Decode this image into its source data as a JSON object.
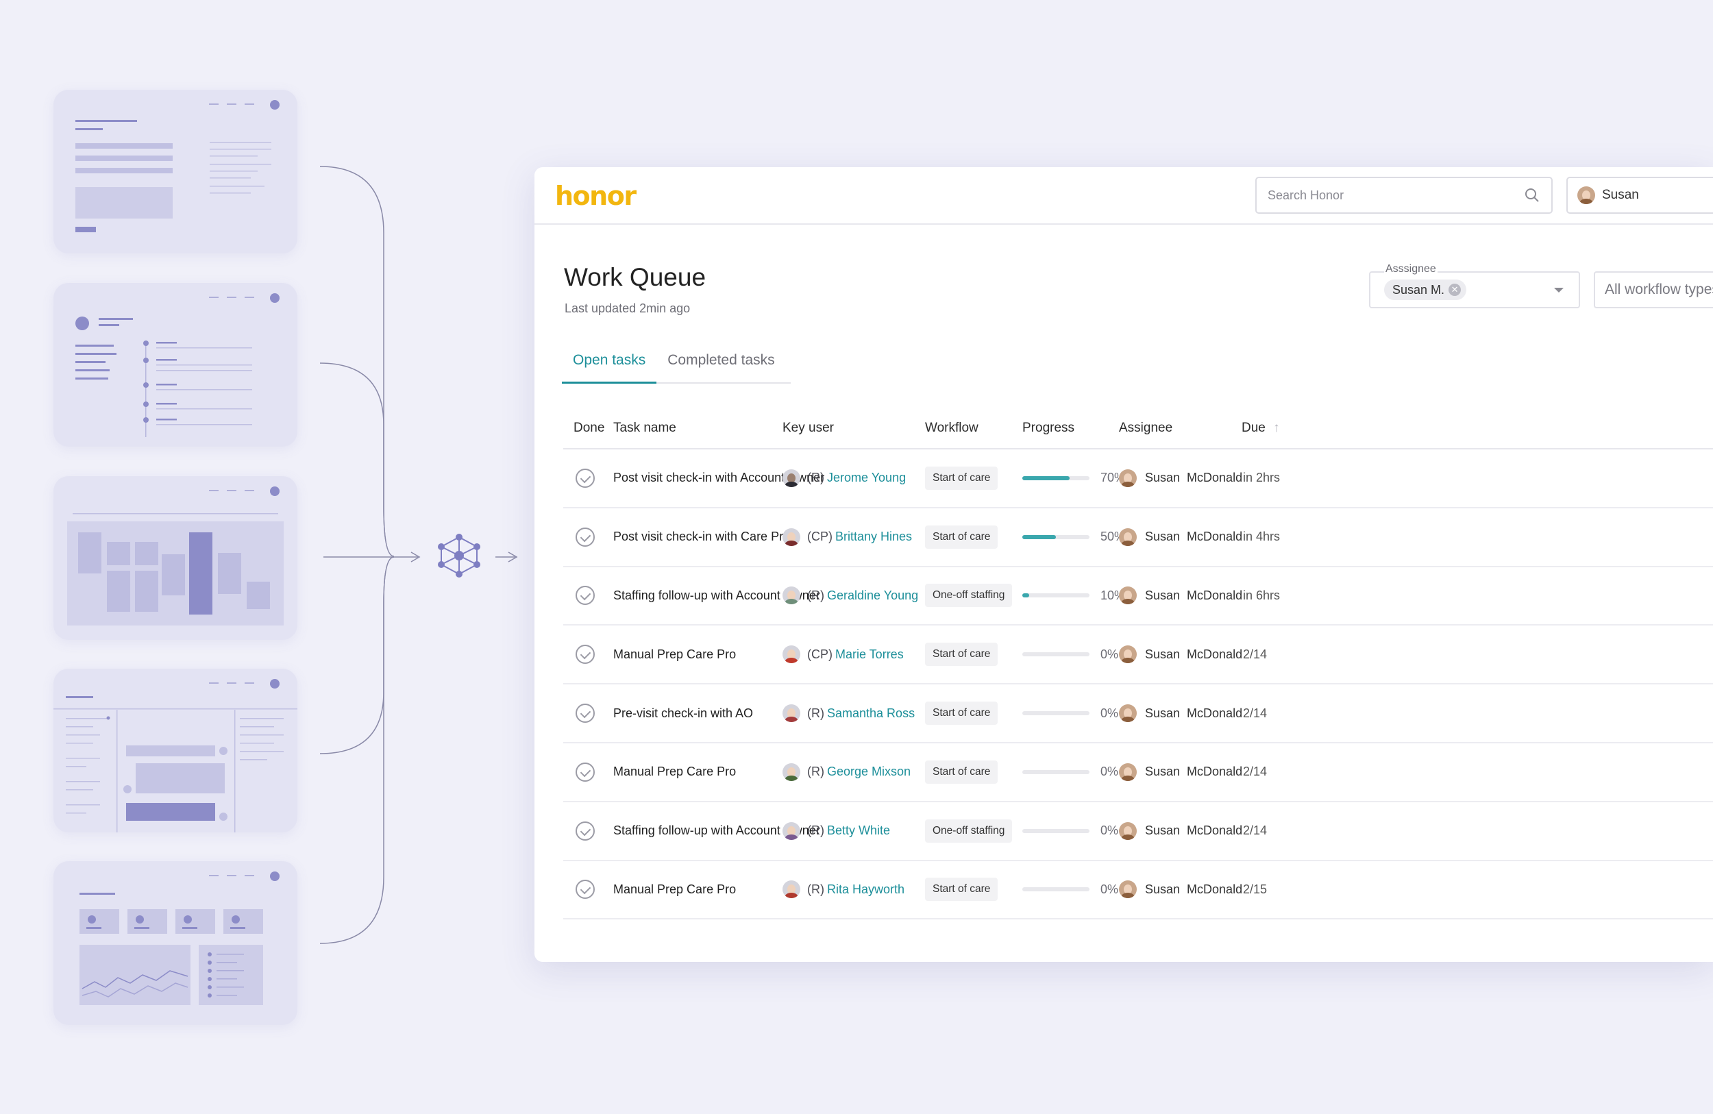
{
  "app": {
    "logo": "honor"
  },
  "search": {
    "placeholder": "Search Honor"
  },
  "user_menu": {
    "name": "Susan"
  },
  "page": {
    "title": "Work Queue",
    "last_updated": "Last updated 2min ago"
  },
  "filters": {
    "assignee_label": "Asssignee",
    "assignee_chip": "Susan M.",
    "workflow_placeholder": "All workflow types"
  },
  "tabs": [
    {
      "label": "Open tasks",
      "active": true
    },
    {
      "label": "Completed tasks",
      "active": false
    }
  ],
  "table": {
    "headers": {
      "done": "Done",
      "task": "Task name",
      "key_user": "Key user",
      "workflow": "Workflow",
      "progress": "Progress",
      "assignee": "Assignee",
      "due": "Due"
    },
    "rows": [
      {
        "task": "Post visit check-in with Account Owner",
        "role": "(R)",
        "user": "Jerome Young",
        "workflow": "Start of care",
        "progress": 70,
        "progress_text": "70%",
        "assignee": "Susan  McDonald",
        "due": "in 2hrs"
      },
      {
        "task": "Post visit check-in with Care Pro",
        "role": "(CP)",
        "user": "Brittany Hines",
        "workflow": "Start of care",
        "progress": 50,
        "progress_text": "50%",
        "assignee": "Susan  McDonald",
        "due": "in 4hrs"
      },
      {
        "task": "Staffing follow-up with Account Owner",
        "role": "(R)",
        "user": "Geraldine Young",
        "workflow": "One-off staffing",
        "progress": 10,
        "progress_text": "10%",
        "assignee": "Susan  McDonald",
        "due": "in 6hrs"
      },
      {
        "task": "Manual Prep Care Pro",
        "role": "(CP)",
        "user": "Marie Torres",
        "workflow": "Start of care",
        "progress": 0,
        "progress_text": "0%",
        "assignee": "Susan  McDonald",
        "due": "2/14"
      },
      {
        "task": "Pre-visit check-in with AO",
        "role": "(R)",
        "user": "Samantha Ross",
        "workflow": "Start of care",
        "progress": 0,
        "progress_text": "0%",
        "assignee": "Susan  McDonald",
        "due": "2/14"
      },
      {
        "task": "Manual Prep Care Pro",
        "role": "(R)",
        "user": "George Mixson",
        "workflow": "Start of care",
        "progress": 0,
        "progress_text": "0%",
        "assignee": "Susan  McDonald",
        "due": "2/14"
      },
      {
        "task": "Staffing follow-up with Account Owner",
        "role": "(R)",
        "user": "Betty White",
        "workflow": "One-off staffing",
        "progress": 0,
        "progress_text": "0%",
        "assignee": "Susan  McDonald",
        "due": "2/14"
      },
      {
        "task": "Manual Prep Care Pro",
        "role": "(R)",
        "user": "Rita Hayworth",
        "workflow": "Start of care",
        "progress": 0,
        "progress_text": "0%",
        "assignee": "Susan  McDonald",
        "due": "2/15"
      }
    ]
  },
  "colors": {
    "background": "#f0f0f9",
    "brand": "#f2b60f",
    "accent": "#1d8f9a",
    "progress": "#3aa7ad",
    "illustration": "#7e7ec2"
  }
}
